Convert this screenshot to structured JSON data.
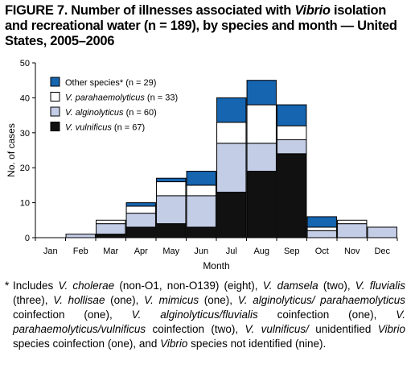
{
  "title": {
    "prefix": "FIGURE 7. Number of illnesses associated with ",
    "genus": "Vibrio",
    "suffix": " isolation and recreational water (n = 189), by species and month — United States, 2005–2006"
  },
  "chart_data": {
    "type": "bar",
    "stacked": true,
    "categories": [
      "Jan",
      "Feb",
      "Mar",
      "Apr",
      "May",
      "Jun",
      "Jul",
      "Aug",
      "Sep",
      "Oct",
      "Nov",
      "Dec"
    ],
    "series": [
      {
        "name": "V. vulnificus",
        "label_suffix": " (n = 67)",
        "italic": true,
        "color": "#111111",
        "values": [
          0,
          0,
          1,
          3,
          4,
          3,
          13,
          19,
          24,
          0,
          0,
          0
        ]
      },
      {
        "name": "V. alginolyticus",
        "label_suffix": " (n = 60)",
        "italic": true,
        "color": "#c3cde6",
        "values": [
          0,
          1,
          3,
          4,
          8,
          9,
          14,
          8,
          4,
          2,
          4,
          3
        ]
      },
      {
        "name": "V. parahaemolyticus",
        "label_suffix": " (n = 33)",
        "italic": true,
        "color": "#ffffff",
        "values": [
          0,
          0,
          1,
          2,
          4,
          3,
          6,
          11,
          4,
          1,
          1,
          0
        ]
      },
      {
        "name": "Other species*",
        "label_suffix": " (n = 29)",
        "italic": false,
        "color": "#1565b0",
        "values": [
          0,
          0,
          0,
          1,
          1,
          4,
          7,
          7,
          6,
          3,
          0,
          0
        ]
      }
    ],
    "xlabel": "Month",
    "ylabel": "No. of cases",
    "ylim": [
      0,
      50
    ],
    "yticks": [
      0,
      10,
      20,
      30,
      40,
      50
    ],
    "grid": false,
    "legend_position": "top-left"
  },
  "footnote": [
    {
      "t": "Includes ",
      "i": false
    },
    {
      "t": "V. cholerae",
      "i": true
    },
    {
      "t": " (non-O1, non-O139) (eight), ",
      "i": false
    },
    {
      "t": "V. damsela",
      "i": true
    },
    {
      "t": " (two), ",
      "i": false
    },
    {
      "t": "V. fluvialis",
      "i": true
    },
    {
      "t": " (three), ",
      "i": false
    },
    {
      "t": "V. hollisae",
      "i": true
    },
    {
      "t": " (one), ",
      "i": false
    },
    {
      "t": "V. mimicus",
      "i": true
    },
    {
      "t": " (one), ",
      "i": false
    },
    {
      "t": "V. alginolyticus/ parahaemolyticus",
      "i": true
    },
    {
      "t": " coinfection (one), ",
      "i": false
    },
    {
      "t": "V. alginolyticus/fluvialis",
      "i": true
    },
    {
      "t": " coinfection (one), ",
      "i": false
    },
    {
      "t": "V. parahaemolyticus/vulnificus",
      "i": true
    },
    {
      "t": " coinfection (two), ",
      "i": false
    },
    {
      "t": "V. vulnificus/",
      "i": true
    },
    {
      "t": " unidentified ",
      "i": false
    },
    {
      "t": "Vibrio",
      "i": true
    },
    {
      "t": " species coinfection (one), and ",
      "i": false
    },
    {
      "t": "Vibrio",
      "i": true
    },
    {
      "t": " species not identified (nine).",
      "i": false
    }
  ],
  "footnote_marker": "*"
}
